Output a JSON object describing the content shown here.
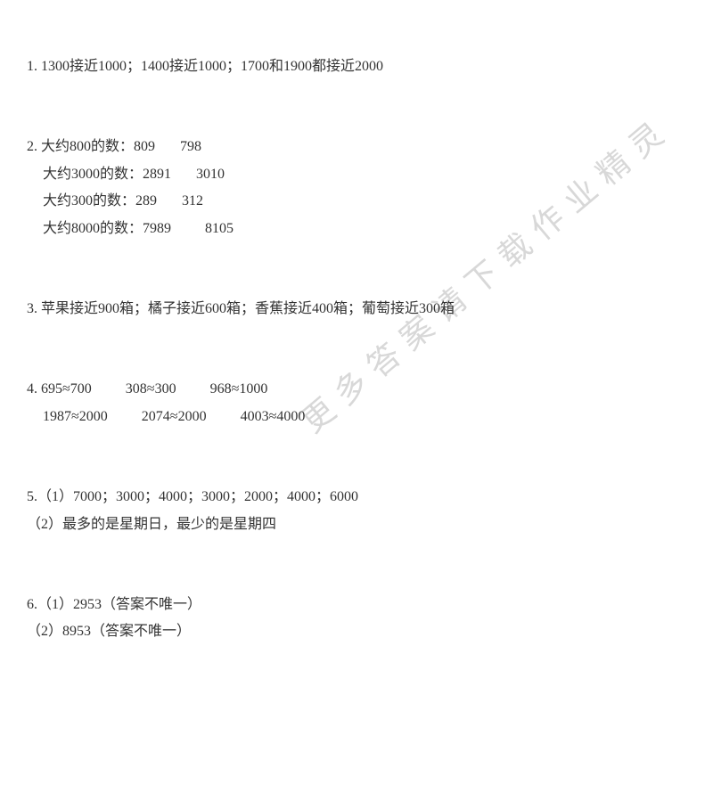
{
  "watermark_text": "更多答案请下载作业精灵",
  "problems": {
    "p1": {
      "line1": "1. 1300接近1000；1400接近1000；1700和1900都接近2000"
    },
    "p2": {
      "line1": "2. 大约800的数：809",
      "line1b": "798",
      "line2a": "大约3000的数：2891",
      "line2b": "3010",
      "line3a": "大约300的数：289",
      "line3b": "312",
      "line4a": "大约8000的数：7989",
      "line4b": "8105"
    },
    "p3": {
      "line1": "3. 苹果接近900箱；橘子接近600箱；香蕉接近400箱；葡萄接近300箱"
    },
    "p4": {
      "l1a": "4. 695≈700",
      "l1b": "308≈300",
      "l1c": "968≈1000",
      "l2a": "1987≈2000",
      "l2b": "2074≈2000",
      "l2c": "4003≈4000"
    },
    "p5": {
      "line1": "5.（1）7000；3000；4000；3000；2000；4000；6000",
      "line2": "（2）最多的是星期日，最少的是星期四"
    },
    "p6": {
      "line1": "6.（1）2953（答案不唯一）",
      "line2": "（2）8953（答案不唯一）"
    }
  }
}
